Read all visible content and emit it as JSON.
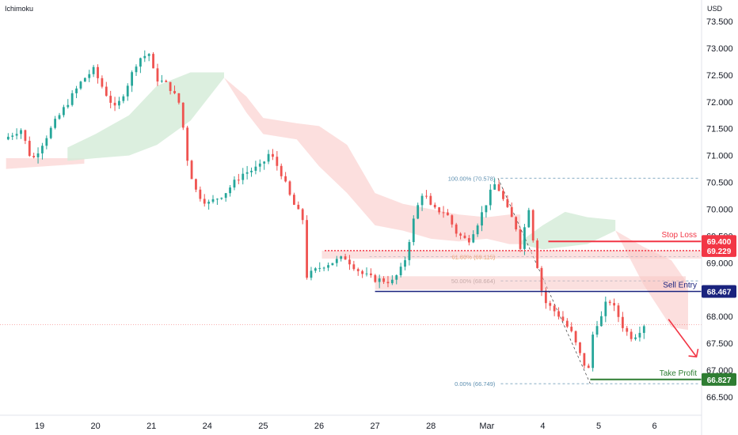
{
  "header": {
    "indicator": "Ichimoku",
    "currency": "USD"
  },
  "colors": {
    "up": "#26a69a",
    "down": "#ef5350",
    "cloud_bull": "#d6ecd9",
    "cloud_bear": "#fbd9d8",
    "stop": "#f23645",
    "entry": "#1a237e",
    "take": "#2e7d32",
    "fib_line": "#5d8fb0",
    "fib_text_100": "#5d8fb0",
    "fib_text_618": "#e08a3c",
    "fib_text_50": "#8a8a8a",
    "fib_text_0": "#5d8fb0",
    "arrow": "#f23645"
  },
  "chart_data": {
    "type": "candlestick",
    "ylim": [
      66.3,
      73.72
    ],
    "y_ticks": [
      66.5,
      67.0,
      67.5,
      68.0,
      68.5,
      69.0,
      69.5,
      70.0,
      70.5,
      71.0,
      71.5,
      72.0,
      72.5,
      73.0,
      73.5
    ],
    "y_tick_labels": [
      "66.500",
      "67.000",
      "67.500",
      "68.000",
      "68.500",
      "69.000",
      "69.500",
      "70.000",
      "70.500",
      "71.000",
      "71.500",
      "72.000",
      "72.500",
      "73.000",
      "73.500"
    ],
    "x_labels": [
      {
        "label": "19",
        "day": 0
      },
      {
        "label": "20",
        "day": 1
      },
      {
        "label": "21",
        "day": 2
      },
      {
        "label": "24",
        "day": 3
      },
      {
        "label": "25",
        "day": 4
      },
      {
        "label": "26",
        "day": 5
      },
      {
        "label": "27",
        "day": 6
      },
      {
        "label": "28",
        "day": 7
      },
      {
        "label": "Mar",
        "day": 8
      },
      {
        "label": "4",
        "day": 9
      },
      {
        "label": "5",
        "day": 10
      },
      {
        "label": "6",
        "day": 11
      }
    ],
    "path_keypoints": [
      [
        -0.6,
        71.3
      ],
      [
        -0.3,
        71.5
      ],
      [
        -0.1,
        70.9
      ],
      [
        0.3,
        71.6
      ],
      [
        0.8,
        72.4
      ],
      [
        1.0,
        72.6
      ],
      [
        1.2,
        72.2
      ],
      [
        1.4,
        71.85
      ],
      [
        1.6,
        72.3
      ],
      [
        1.8,
        72.8
      ],
      [
        2.0,
        72.9
      ],
      [
        2.1,
        72.45
      ],
      [
        2.35,
        72.3
      ],
      [
        2.55,
        71.95
      ],
      [
        2.7,
        70.8
      ],
      [
        2.85,
        70.3
      ],
      [
        3.05,
        70.1
      ],
      [
        3.35,
        70.3
      ],
      [
        3.65,
        70.65
      ],
      [
        4.0,
        70.8
      ],
      [
        4.15,
        71.05
      ],
      [
        4.35,
        70.7
      ],
      [
        4.55,
        70.15
      ],
      [
        4.75,
        69.8
      ],
      [
        4.82,
        68.75
      ],
      [
        5.1,
        68.95
      ],
      [
        5.5,
        69.1
      ],
      [
        5.8,
        68.8
      ],
      [
        6.0,
        68.7
      ],
      [
        6.35,
        68.65
      ],
      [
        6.55,
        68.95
      ],
      [
        6.75,
        69.9
      ],
      [
        6.9,
        70.35
      ],
      [
        7.05,
        70.0
      ],
      [
        7.3,
        69.95
      ],
      [
        7.5,
        69.55
      ],
      [
        7.7,
        69.4
      ],
      [
        7.9,
        69.8
      ],
      [
        8.1,
        70.3
      ],
      [
        8.2,
        70.5
      ],
      [
        8.4,
        70.0
      ],
      [
        8.55,
        69.7
      ],
      [
        8.65,
        69.25
      ],
      [
        8.78,
        70.1
      ],
      [
        8.9,
        69.2
      ],
      [
        9.05,
        68.3
      ],
      [
        9.2,
        68.15
      ],
      [
        9.35,
        68.0
      ],
      [
        9.55,
        67.7
      ],
      [
        9.7,
        67.3
      ],
      [
        9.85,
        66.95
      ],
      [
        9.95,
        67.8
      ],
      [
        10.1,
        68.0
      ],
      [
        10.2,
        68.35
      ],
      [
        10.35,
        68.1
      ],
      [
        10.5,
        67.75
      ],
      [
        10.65,
        67.6
      ],
      [
        10.85,
        67.85
      ]
    ],
    "candle_count": 150,
    "cloud_bull": {
      "top": [
        [
          0.5,
          71.15
        ],
        [
          1.0,
          71.4
        ],
        [
          1.6,
          71.75
        ],
        [
          2.1,
          72.3
        ],
        [
          2.7,
          72.55
        ],
        [
          3.3,
          72.55
        ],
        [
          3.3,
          72.45
        ]
      ],
      "bottom": [
        [
          0.5,
          70.9
        ],
        [
          1.0,
          70.95
        ],
        [
          1.6,
          71.0
        ],
        [
          2.1,
          71.2
        ],
        [
          2.7,
          71.65
        ],
        [
          3.3,
          72.45
        ]
      ]
    },
    "cloud_bear_1": {
      "top": [
        [
          -0.6,
          70.95
        ],
        [
          0.8,
          70.95
        ]
      ],
      "bottom": [
        [
          -0.6,
          70.75
        ],
        [
          0.8,
          70.85
        ]
      ]
    },
    "cloud_bear_2": {
      "top": [
        [
          3.3,
          72.45
        ],
        [
          3.7,
          72.1
        ],
        [
          4.0,
          71.7
        ],
        [
          4.6,
          71.6
        ],
        [
          5.0,
          71.55
        ],
        [
          5.5,
          71.2
        ],
        [
          6.0,
          70.3
        ],
        [
          6.5,
          70.1
        ],
        [
          7.0,
          70.0
        ],
        [
          7.5,
          69.9
        ],
        [
          8.0,
          69.85
        ],
        [
          8.4,
          69.9
        ],
        [
          8.6,
          69.9
        ]
      ],
      "bottom": [
        [
          3.3,
          72.45
        ],
        [
          3.7,
          71.8
        ],
        [
          4.0,
          71.4
        ],
        [
          4.6,
          71.3
        ],
        [
          5.0,
          70.8
        ],
        [
          5.5,
          70.3
        ],
        [
          6.0,
          69.7
        ],
        [
          6.5,
          69.6
        ],
        [
          7.0,
          69.45
        ],
        [
          7.5,
          69.4
        ],
        [
          8.0,
          69.45
        ],
        [
          8.4,
          69.35
        ],
        [
          8.6,
          69.35
        ]
      ]
    },
    "cloud_bull_2": {
      "top": [
        [
          8.6,
          69.4
        ],
        [
          9.0,
          69.7
        ],
        [
          9.4,
          69.95
        ],
        [
          9.8,
          69.85
        ],
        [
          10.3,
          69.8
        ],
        [
          10.3,
          69.6
        ]
      ],
      "bottom": [
        [
          8.6,
          69.35
        ],
        [
          9.0,
          69.25
        ],
        [
          9.4,
          69.3
        ],
        [
          9.8,
          69.35
        ],
        [
          10.3,
          69.6
        ]
      ]
    },
    "cloud_bear_3": {
      "top": [
        [
          10.3,
          69.6
        ],
        [
          10.8,
          69.3
        ],
        [
          11.3,
          69.05
        ],
        [
          11.6,
          68.6
        ]
      ],
      "bottom": [
        [
          10.3,
          69.6
        ],
        [
          10.8,
          68.6
        ],
        [
          11.3,
          67.8
        ],
        [
          11.6,
          67.75
        ]
      ]
    },
    "levels": [
      {
        "name": "Stop Loss",
        "value": 69.4,
        "label": "69.400",
        "badge_color": "#f23645"
      },
      {
        "name": "",
        "value": 69.229,
        "label": "69.229",
        "badge_color": "#f23645"
      },
      {
        "name": "Sell Entry",
        "value": 68.467,
        "label": "68.467",
        "badge_color": "#1a237e"
      },
      {
        "name": "Take Profit",
        "value": 66.827,
        "label": "66.827",
        "badge_color": "#2e7d32"
      }
    ],
    "fibonacci": [
      {
        "label": "100.00% (70.578)",
        "value": 70.578
      },
      {
        "label": "61.80% (69.115)",
        "value": 69.115
      },
      {
        "label": "50.00% (68.664)",
        "value": 68.664
      },
      {
        "label": "0.00% (66.749)",
        "value": 66.749
      }
    ],
    "current_price": 67.85
  }
}
